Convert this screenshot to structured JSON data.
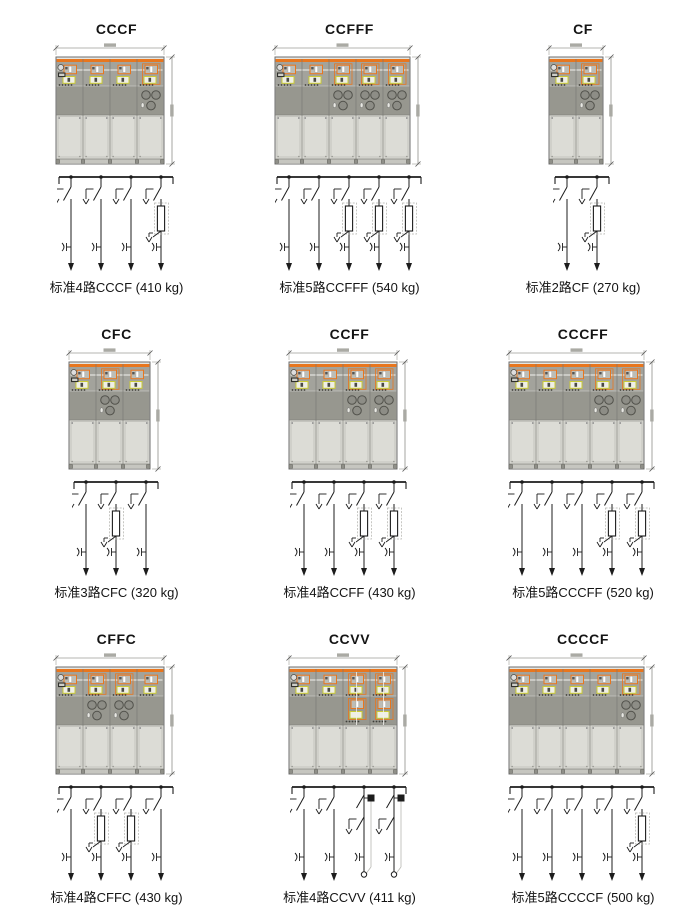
{
  "page": {
    "background": "#ffffff",
    "description_note": ""
  },
  "colors": {
    "accent_orange": "#E8761E",
    "mimic_yellow": "#CBCB35",
    "control_band_gray": "#A3A39C",
    "middle_band_gray": "#97978F",
    "door_gray": "#DCDCD6",
    "base_gray": "#C6C6C0",
    "outline_gray": "#6F6F6F",
    "line_dark": "#1C1C1C",
    "dash_gray": "#B0B0AA"
  },
  "panels": [
    {
      "title": "CCCF",
      "modules": [
        "C",
        "C",
        "C",
        "F"
      ],
      "routes": 4,
      "weight_kg": 410,
      "caption": "标准4路CCCF (410 kg)"
    },
    {
      "title": "CCFFF",
      "modules": [
        "C",
        "C",
        "F",
        "F",
        "F"
      ],
      "routes": 5,
      "weight_kg": 540,
      "caption": "标准5路CCFFF (540 kg)"
    },
    {
      "title": "CF",
      "modules": [
        "C",
        "F"
      ],
      "routes": 2,
      "weight_kg": 270,
      "caption": "标准2路CF (270 kg)"
    },
    {
      "title": "CFC",
      "modules": [
        "C",
        "F",
        "C"
      ],
      "routes": 3,
      "weight_kg": 320,
      "caption": "标准3路CFC (320 kg)"
    },
    {
      "title": "CCFF",
      "modules": [
        "C",
        "C",
        "F",
        "F"
      ],
      "routes": 4,
      "weight_kg": 430,
      "caption": "标准4路CCFF (430 kg)"
    },
    {
      "title": "CCCFF",
      "modules": [
        "C",
        "C",
        "C",
        "F",
        "F"
      ],
      "routes": 5,
      "weight_kg": 520,
      "caption": "标准5路CCCFF (520 kg)"
    },
    {
      "title": "CFFC",
      "modules": [
        "C",
        "F",
        "F",
        "C"
      ],
      "routes": 4,
      "weight_kg": 430,
      "caption": "标准4路CFFC (430 kg)"
    },
    {
      "title": "CCVV",
      "modules": [
        "C",
        "C",
        "V",
        "V"
      ],
      "routes": 4,
      "weight_kg": 411,
      "caption": "标准4路CCVV (411 kg)"
    },
    {
      "title": "CCCCF",
      "modules": [
        "C",
        "C",
        "C",
        "C",
        "F"
      ],
      "routes": 5,
      "weight_kg": 500,
      "caption": "标准5路CCCCF (500 kg)"
    }
  ]
}
